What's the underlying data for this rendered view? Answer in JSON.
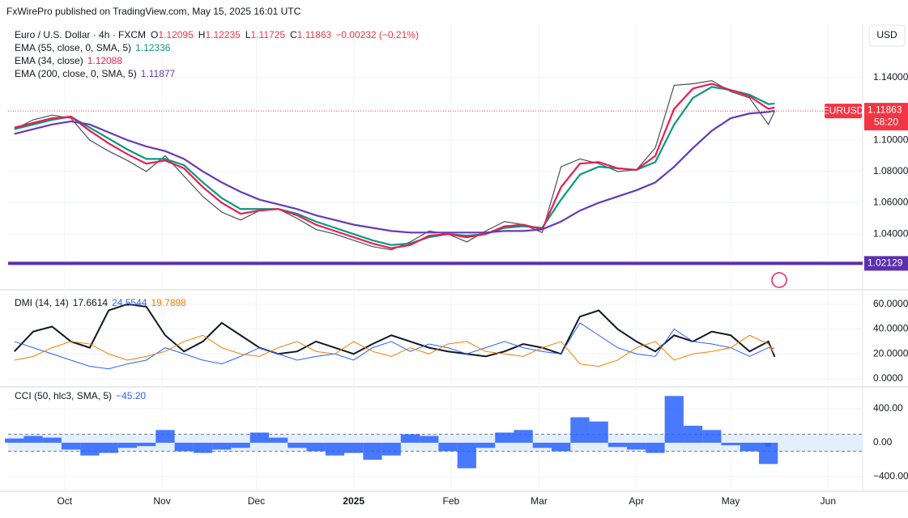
{
  "header": "FxWirePro published on TradingView.com, May 15, 2025 16:01 UTC",
  "currency": "USD",
  "chart_data": [
    {
      "type": "line",
      "title": "Euro / U.S. Dollar · 4h · FXCM",
      "symbol": "EURUSD",
      "countdown": "58:20",
      "ohlc": [
        {
          "label": "O",
          "value": 1.12095
        },
        {
          "label": "H",
          "value": 1.12235
        },
        {
          "label": "L",
          "value": 1.11725
        },
        {
          "label": "C",
          "value": 1.11863
        }
      ],
      "change": "−0.00232 (−0.21%)",
      "x": [
        -16,
        -10,
        -4,
        2,
        8,
        14,
        20,
        26,
        32,
        38,
        44,
        50,
        56,
        62,
        68,
        74,
        80,
        86,
        92,
        98,
        104,
        110,
        116,
        122,
        128,
        134,
        140,
        146,
        152,
        158,
        164,
        170,
        176,
        182,
        188,
        194,
        200,
        206,
        212,
        218,
        224,
        226
      ],
      "xlim": [
        -18,
        254
      ],
      "xticks": [
        {
          "value": 0,
          "label": "Oct"
        },
        {
          "value": 31,
          "label": "Nov"
        },
        {
          "value": 61,
          "label": "Dec"
        },
        {
          "value": 92,
          "label": "2025"
        },
        {
          "value": 123,
          "label": "Feb"
        },
        {
          "value": 151,
          "label": "Mar"
        },
        {
          "value": 182,
          "label": "Apr"
        },
        {
          "value": 212,
          "label": "May"
        },
        {
          "value": 243,
          "label": "Jun"
        }
      ],
      "ylim": [
        1.006,
        1.174
      ],
      "yticks": [
        {
          "value": 1.04,
          "label": "1.04000"
        },
        {
          "value": 1.06,
          "label": "1.06000"
        },
        {
          "value": 1.08,
          "label": "1.08000"
        },
        {
          "value": 1.1,
          "label": "1.10000"
        },
        {
          "value": 1.14,
          "label": "1.14000"
        }
      ],
      "hline": {
        "value": 1.02129,
        "color": "#5b2fb0"
      },
      "series": [
        {
          "color": "#4a4f5c",
          "values": [
            1.107,
            1.113,
            1.116,
            1.114,
            1.1,
            1.093,
            1.087,
            1.08,
            1.09,
            1.077,
            1.064,
            1.054,
            1.049,
            1.055,
            1.056,
            1.05,
            1.043,
            1.04,
            1.036,
            1.032,
            1.03,
            1.035,
            1.042,
            1.04,
            1.035,
            1.042,
            1.048,
            1.046,
            1.041,
            1.083,
            1.088,
            1.085,
            1.08,
            1.081,
            1.095,
            1.135,
            1.136,
            1.138,
            1.131,
            1.127,
            1.11,
            1.11863
          ]
        },
        {
          "name": "EMA (55, close, 0, SMA, 5)",
          "color": "#089981",
          "values": [
            1.107,
            1.11,
            1.113,
            1.115,
            1.108,
            1.101,
            1.094,
            1.088,
            1.088,
            1.084,
            1.073,
            1.063,
            1.056,
            1.056,
            1.056,
            1.053,
            1.048,
            1.044,
            1.04,
            1.036,
            1.033,
            1.034,
            1.038,
            1.04,
            1.039,
            1.04,
            1.044,
            1.045,
            1.044,
            1.062,
            1.078,
            1.083,
            1.082,
            1.081,
            1.086,
            1.11,
            1.127,
            1.134,
            1.132,
            1.129,
            1.123,
            1.12336
          ]
        },
        {
          "name": "EMA (34, close)",
          "color": "#e91e4f",
          "values": [
            1.108,
            1.111,
            1.114,
            1.115,
            1.106,
            1.098,
            1.091,
            1.085,
            1.087,
            1.082,
            1.07,
            1.06,
            1.053,
            1.055,
            1.056,
            1.052,
            1.046,
            1.042,
            1.038,
            1.034,
            1.031,
            1.033,
            1.039,
            1.04,
            1.038,
            1.04,
            1.045,
            1.046,
            1.043,
            1.07,
            1.085,
            1.086,
            1.082,
            1.081,
            1.09,
            1.12,
            1.133,
            1.136,
            1.132,
            1.128,
            1.12,
            1.12088
          ]
        },
        {
          "name": "EMA (200, close, 0, SMA, 5)",
          "color": "#673ab7",
          "values": [
            1.104,
            1.107,
            1.11,
            1.112,
            1.11,
            1.105,
            1.1,
            1.096,
            1.093,
            1.088,
            1.08,
            1.073,
            1.067,
            1.062,
            1.059,
            1.056,
            1.052,
            1.049,
            1.046,
            1.044,
            1.042,
            1.041,
            1.041,
            1.041,
            1.041,
            1.041,
            1.042,
            1.042,
            1.043,
            1.048,
            1.055,
            1.06,
            1.064,
            1.068,
            1.073,
            1.083,
            1.095,
            1.106,
            1.114,
            1.117,
            1.118,
            1.11877
          ]
        }
      ]
    },
    {
      "type": "line",
      "title": "DMI (14, 14)",
      "ylim": [
        -6.5,
        69
      ],
      "yticks": [
        {
          "value": 0,
          "label": "0.0000"
        },
        {
          "value": 20,
          "label": "20.0000"
        },
        {
          "value": 40,
          "label": "40.0000"
        },
        {
          "value": 60,
          "label": "60.0000"
        }
      ],
      "series": [
        {
          "color": "#131722",
          "values": [
            22,
            38,
            42,
            30,
            25,
            55,
            60,
            58,
            35,
            22,
            30,
            45,
            35,
            25,
            20,
            22,
            30,
            25,
            20,
            28,
            35,
            30,
            25,
            22,
            20,
            18,
            22,
            28,
            25,
            20,
            50,
            55,
            40,
            30,
            22,
            35,
            30,
            38,
            35,
            22,
            30,
            17.6614
          ]
        },
        {
          "color": "#2962ff",
          "values": [
            30,
            25,
            20,
            15,
            10,
            8,
            12,
            15,
            25,
            20,
            15,
            12,
            18,
            25,
            20,
            15,
            18,
            20,
            15,
            25,
            30,
            22,
            28,
            25,
            20,
            25,
            30,
            25,
            22,
            20,
            45,
            35,
            25,
            20,
            18,
            40,
            30,
            28,
            25,
            18,
            25,
            24.5544
          ]
        },
        {
          "color": "#f57c00",
          "values": [
            15,
            18,
            25,
            30,
            28,
            20,
            15,
            18,
            22,
            30,
            35,
            25,
            20,
            18,
            25,
            30,
            22,
            20,
            30,
            22,
            18,
            25,
            20,
            28,
            30,
            22,
            20,
            18,
            25,
            30,
            12,
            10,
            15,
            25,
            30,
            15,
            20,
            22,
            25,
            35,
            28,
            19.7898
          ]
        }
      ]
    },
    {
      "type": "bar",
      "title": "CCI (50, hlc3, SMA, 5)",
      "last_label": "−45.20",
      "color": "#2962ff",
      "ylim": [
        -552,
        619
      ],
      "yticks": [
        {
          "value": 400,
          "label": "400.00"
        },
        {
          "value": 0,
          "label": "0.00"
        },
        {
          "value": -400,
          "label": "−400.00"
        }
      ],
      "band": [
        -100,
        100
      ],
      "values": [
        50,
        80,
        60,
        -80,
        -150,
        -120,
        -60,
        -40,
        150,
        -100,
        -120,
        -80,
        -60,
        120,
        60,
        -60,
        -100,
        -150,
        -120,
        -200,
        -150,
        100,
        80,
        -100,
        -300,
        -60,
        120,
        150,
        -60,
        -100,
        300,
        250,
        -50,
        -80,
        -120,
        550,
        200,
        150,
        -30,
        -100,
        -250,
        -45.2
      ]
    }
  ]
}
